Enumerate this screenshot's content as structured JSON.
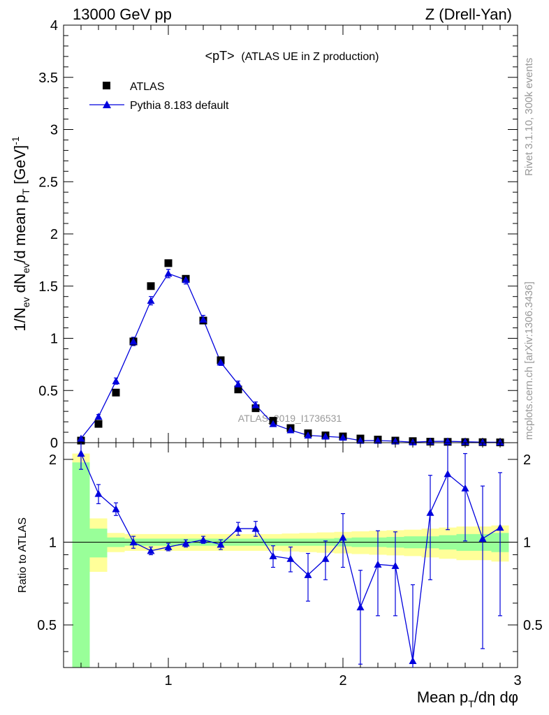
{
  "header": {
    "left": "13000 GeV pp",
    "right": "Z (Drell-Yan)"
  },
  "side_labels": {
    "rivet": "Rivet 3.1.10,  300k events",
    "mcplots": "mcplots.cern.ch [arXiv:1306.3436]"
  },
  "chart_data": [
    {
      "type": "scatter",
      "panel": "main",
      "title": "<pT>",
      "title_detail": "(ATLAS UE in Z production)",
      "ylabel": "1/N_ev dN_ev/d mean p_T [GeV]^-1",
      "watermark": "ATLAS_2019_I1736531",
      "xlim": [
        0.4,
        3.0
      ],
      "ylim": [
        0,
        4
      ],
      "yticks": [
        "0",
        "0.5",
        "1",
        "1.5",
        "2",
        "2.5",
        "3",
        "3.5",
        "4"
      ],
      "legend_position": "top-left",
      "x": [
        0.5,
        0.6,
        0.7,
        0.8,
        0.9,
        1.0,
        1.1,
        1.2,
        1.3,
        1.4,
        1.5,
        1.6,
        1.7,
        1.8,
        1.9,
        2.0,
        2.1,
        2.2,
        2.3,
        2.4,
        2.5,
        2.6,
        2.7,
        2.8,
        2.9
      ],
      "series": [
        {
          "name": "ATLAS",
          "marker": "square",
          "color": "#000000",
          "values": [
            0.02,
            0.18,
            0.48,
            0.97,
            1.5,
            1.72,
            1.57,
            1.17,
            0.79,
            0.51,
            0.33,
            0.21,
            0.14,
            0.09,
            0.07,
            0.06,
            0.04,
            0.03,
            0.02,
            0.015,
            0.01,
            0.008,
            0.006,
            0.005,
            0.003
          ]
        },
        {
          "name": "Pythia 8.183 default",
          "marker": "triangle",
          "color": "#0000dd",
          "values": [
            0.04,
            0.25,
            0.59,
            0.97,
            1.36,
            1.62,
            1.56,
            1.18,
            0.77,
            0.56,
            0.36,
            0.18,
            0.12,
            0.07,
            0.06,
            0.05,
            0.02,
            0.02,
            0.015,
            0.005,
            0.012,
            0.013,
            0.009,
            0.005,
            0.004
          ],
          "errors": [
            0.01,
            0.02,
            0.03,
            0.04,
            0.04,
            0.04,
            0.04,
            0.04,
            0.03,
            0.03,
            0.03,
            0.02,
            0.015,
            0.01,
            0.01,
            0.01,
            0.008,
            0.008,
            0.008,
            0.005,
            0.005,
            0.005,
            0.004,
            0.004,
            0.003
          ]
        }
      ]
    },
    {
      "type": "scatter",
      "panel": "ratio",
      "ylabel": "Ratio to ATLAS",
      "xlabel": "Mean p_T/dη dφ",
      "xlim": [
        0.4,
        3.0
      ],
      "ylim": [
        0.35,
        2.3
      ],
      "xticks": [
        "1",
        "2",
        "3"
      ],
      "yticks": [
        "0.5",
        "1",
        "2"
      ],
      "reference_line": 1,
      "x": [
        0.5,
        0.6,
        0.7,
        0.8,
        0.9,
        1.0,
        1.1,
        1.2,
        1.3,
        1.4,
        1.5,
        1.6,
        1.7,
        1.8,
        1.9,
        2.0,
        2.1,
        2.2,
        2.3,
        2.4,
        2.5,
        2.6,
        2.7,
        2.8,
        2.9
      ],
      "series": [
        {
          "name": "Pythia 8.183 default",
          "color": "#0000dd",
          "values": [
            2.1,
            1.5,
            1.32,
            1.0,
            0.93,
            0.96,
            0.99,
            1.02,
            0.98,
            1.12,
            1.12,
            0.89,
            0.87,
            0.76,
            0.87,
            1.04,
            0.58,
            0.83,
            0.82,
            0.37,
            1.28,
            1.77,
            1.57,
            1.03,
            1.13
          ],
          "err_low": [
            0.26,
            0.12,
            0.07,
            0.05,
            0.03,
            0.03,
            0.03,
            0.03,
            0.04,
            0.06,
            0.07,
            0.08,
            0.09,
            0.15,
            0.14,
            0.23,
            0.22,
            0.29,
            0.28,
            0.33,
            0.55,
            0.66,
            0.56,
            0.62,
            0.59
          ],
          "err_high": [
            0.25,
            0.12,
            0.07,
            0.05,
            0.03,
            0.03,
            0.03,
            0.03,
            0.04,
            0.06,
            0.07,
            0.08,
            0.09,
            0.15,
            0.14,
            0.23,
            0.21,
            0.27,
            0.27,
            0.33,
            0.47,
            0.52,
            0.53,
            0.57,
            0.66
          ]
        }
      ],
      "bands": {
        "x_edges": [
          0.45,
          0.55,
          0.65,
          0.75,
          0.85,
          0.95,
          1.05,
          1.15,
          1.25,
          1.35,
          1.45,
          1.55,
          1.65,
          1.75,
          1.85,
          1.95,
          2.05,
          2.15,
          2.25,
          2.35,
          2.45,
          2.55,
          2.65,
          2.75,
          2.85,
          2.95
        ],
        "stat_color": "#99ff99",
        "total_color": "#ffff99",
        "stat": [
          0.95,
          0.12,
          0.04,
          0.03,
          0.03,
          0.03,
          0.03,
          0.03,
          0.03,
          0.03,
          0.03,
          0.03,
          0.03,
          0.03,
          0.03,
          0.035,
          0.04,
          0.04,
          0.045,
          0.05,
          0.05,
          0.06,
          0.07,
          0.07,
          0.08
        ],
        "total": [
          1.1,
          0.22,
          0.08,
          0.07,
          0.07,
          0.07,
          0.07,
          0.07,
          0.07,
          0.07,
          0.07,
          0.07,
          0.075,
          0.08,
          0.085,
          0.09,
          0.095,
          0.1,
          0.105,
          0.11,
          0.12,
          0.13,
          0.14,
          0.14,
          0.15
        ]
      }
    }
  ]
}
